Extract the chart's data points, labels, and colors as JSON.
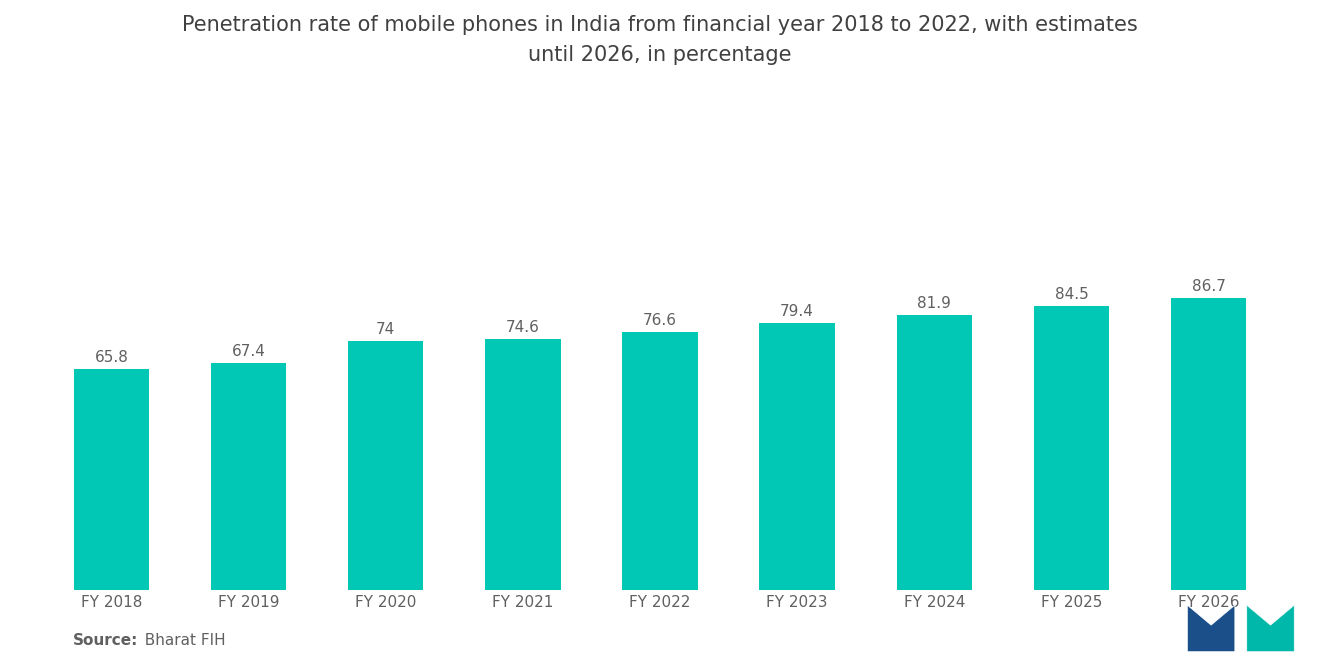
{
  "title": "Penetration rate of mobile phones in India from financial year 2018 to 2022, with estimates\nuntil 2026, in percentage",
  "categories": [
    "FY 2018",
    "FY 2019",
    "FY 2020",
    "FY 2021",
    "FY 2022",
    "FY 2023",
    "FY 2024",
    "FY 2025",
    "FY 2026"
  ],
  "values": [
    65.8,
    67.4,
    74.0,
    74.6,
    76.6,
    79.4,
    81.9,
    84.5,
    86.7
  ],
  "bar_color": "#00C8B4",
  "background_color": "#FFFFFF",
  "title_color": "#404040",
  "label_color": "#606060",
  "source_bold": "Source:",
  "source_text": "  Bharat FIH",
  "ylim": [
    0,
    145
  ],
  "bar_width": 0.55,
  "title_fontsize": 15,
  "tick_fontsize": 11,
  "value_fontsize": 11,
  "source_fontsize": 11
}
